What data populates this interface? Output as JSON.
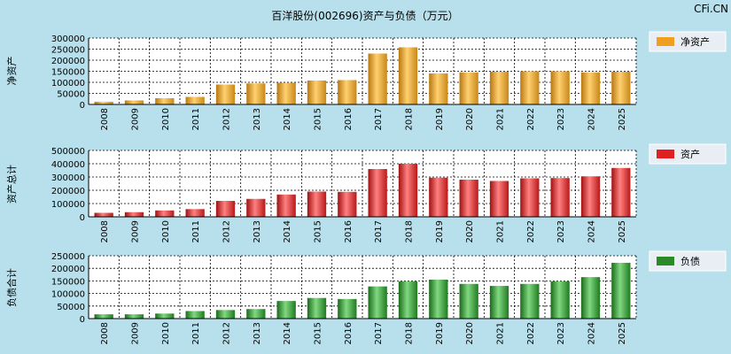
{
  "title": "百洋股份(002696)资产与负债（万元）",
  "watermark": "CFi.CN",
  "chart_data": [
    {
      "type": "bar",
      "ylabel": "净资产",
      "legend": "净资产",
      "color": "#f0a020",
      "ylim": [
        0,
        300000
      ],
      "yticks": [
        0,
        50000,
        100000,
        150000,
        200000,
        250000,
        300000
      ],
      "categories": [
        "2008",
        "2009",
        "2010",
        "2011",
        "2012",
        "2013",
        "2014",
        "2015",
        "2016",
        "2017",
        "2018",
        "2019",
        "2020",
        "2021",
        "2022",
        "2023",
        "2024",
        "2025"
      ],
      "values": [
        12000,
        18000,
        28000,
        34000,
        90000,
        95000,
        98000,
        108000,
        110000,
        230000,
        258000,
        140000,
        145000,
        148000,
        150000,
        150000,
        145000,
        148000
      ]
    },
    {
      "type": "bar",
      "ylabel": "资产总计",
      "legend": "资产",
      "color": "#e02020",
      "ylim": [
        0,
        500000
      ],
      "yticks": [
        0,
        100000,
        200000,
        300000,
        400000,
        500000
      ],
      "categories": [
        "2008",
        "2009",
        "2010",
        "2011",
        "2012",
        "2013",
        "2014",
        "2015",
        "2016",
        "2017",
        "2018",
        "2019",
        "2020",
        "2021",
        "2022",
        "2023",
        "2024",
        "2025"
      ],
      "values": [
        30000,
        35000,
        48000,
        58000,
        120000,
        135000,
        168000,
        190000,
        188000,
        360000,
        400000,
        295000,
        280000,
        270000,
        290000,
        292000,
        305000,
        368000
      ]
    },
    {
      "type": "bar",
      "ylabel": "负债合计",
      "legend": "负债",
      "color": "#2a8a2a",
      "ylim": [
        0,
        250000
      ],
      "yticks": [
        0,
        50000,
        100000,
        150000,
        200000,
        250000
      ],
      "categories": [
        "2008",
        "2009",
        "2010",
        "2011",
        "2012",
        "2013",
        "2014",
        "2015",
        "2016",
        "2017",
        "2018",
        "2019",
        "2020",
        "2021",
        "2022",
        "2023",
        "2024",
        "2025"
      ],
      "values": [
        17000,
        17000,
        20000,
        30000,
        34000,
        38000,
        70000,
        82000,
        78000,
        128000,
        148000,
        155000,
        138000,
        130000,
        138000,
        148000,
        165000,
        222000
      ]
    }
  ]
}
